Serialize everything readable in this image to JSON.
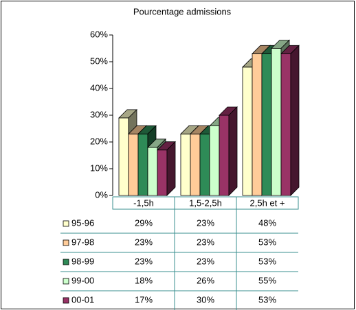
{
  "chart_data": {
    "type": "bar3d",
    "title": "Pourcentage admissions",
    "categories": [
      "-1,5h",
      "1,5-2,5h",
      "2,5h et +"
    ],
    "series": [
      {
        "name": "95-96",
        "color": "#ffffcc",
        "values": [
          29,
          23,
          48
        ],
        "value_labels": [
          "29%",
          "23%",
          "48%"
        ]
      },
      {
        "name": "97-98",
        "color": "#ffcc99",
        "values": [
          23,
          23,
          53
        ],
        "value_labels": [
          "23%",
          "23%",
          "53%"
        ]
      },
      {
        "name": "98-99",
        "color": "#2e8b57",
        "values": [
          23,
          23,
          53
        ],
        "value_labels": [
          "23%",
          "23%",
          "53%"
        ]
      },
      {
        "name": "99-00",
        "color": "#ccffcc",
        "values": [
          18,
          26,
          55
        ],
        "value_labels": [
          "18%",
          "26%",
          "55%"
        ]
      },
      {
        "name": "00-01",
        "color": "#993366",
        "values": [
          17,
          30,
          53
        ],
        "value_labels": [
          "17%",
          "30%",
          "53%"
        ]
      }
    ],
    "ylim": [
      0,
      60
    ],
    "yticks": [
      {
        "value": 0,
        "label": "0%"
      },
      {
        "value": 10,
        "label": "10%"
      },
      {
        "value": 20,
        "label": "20%"
      },
      {
        "value": 30,
        "label": "30%"
      },
      {
        "value": 40,
        "label": "40%"
      },
      {
        "value": 50,
        "label": "50%"
      },
      {
        "value": 60,
        "label": "60%"
      }
    ],
    "grid": false
  }
}
